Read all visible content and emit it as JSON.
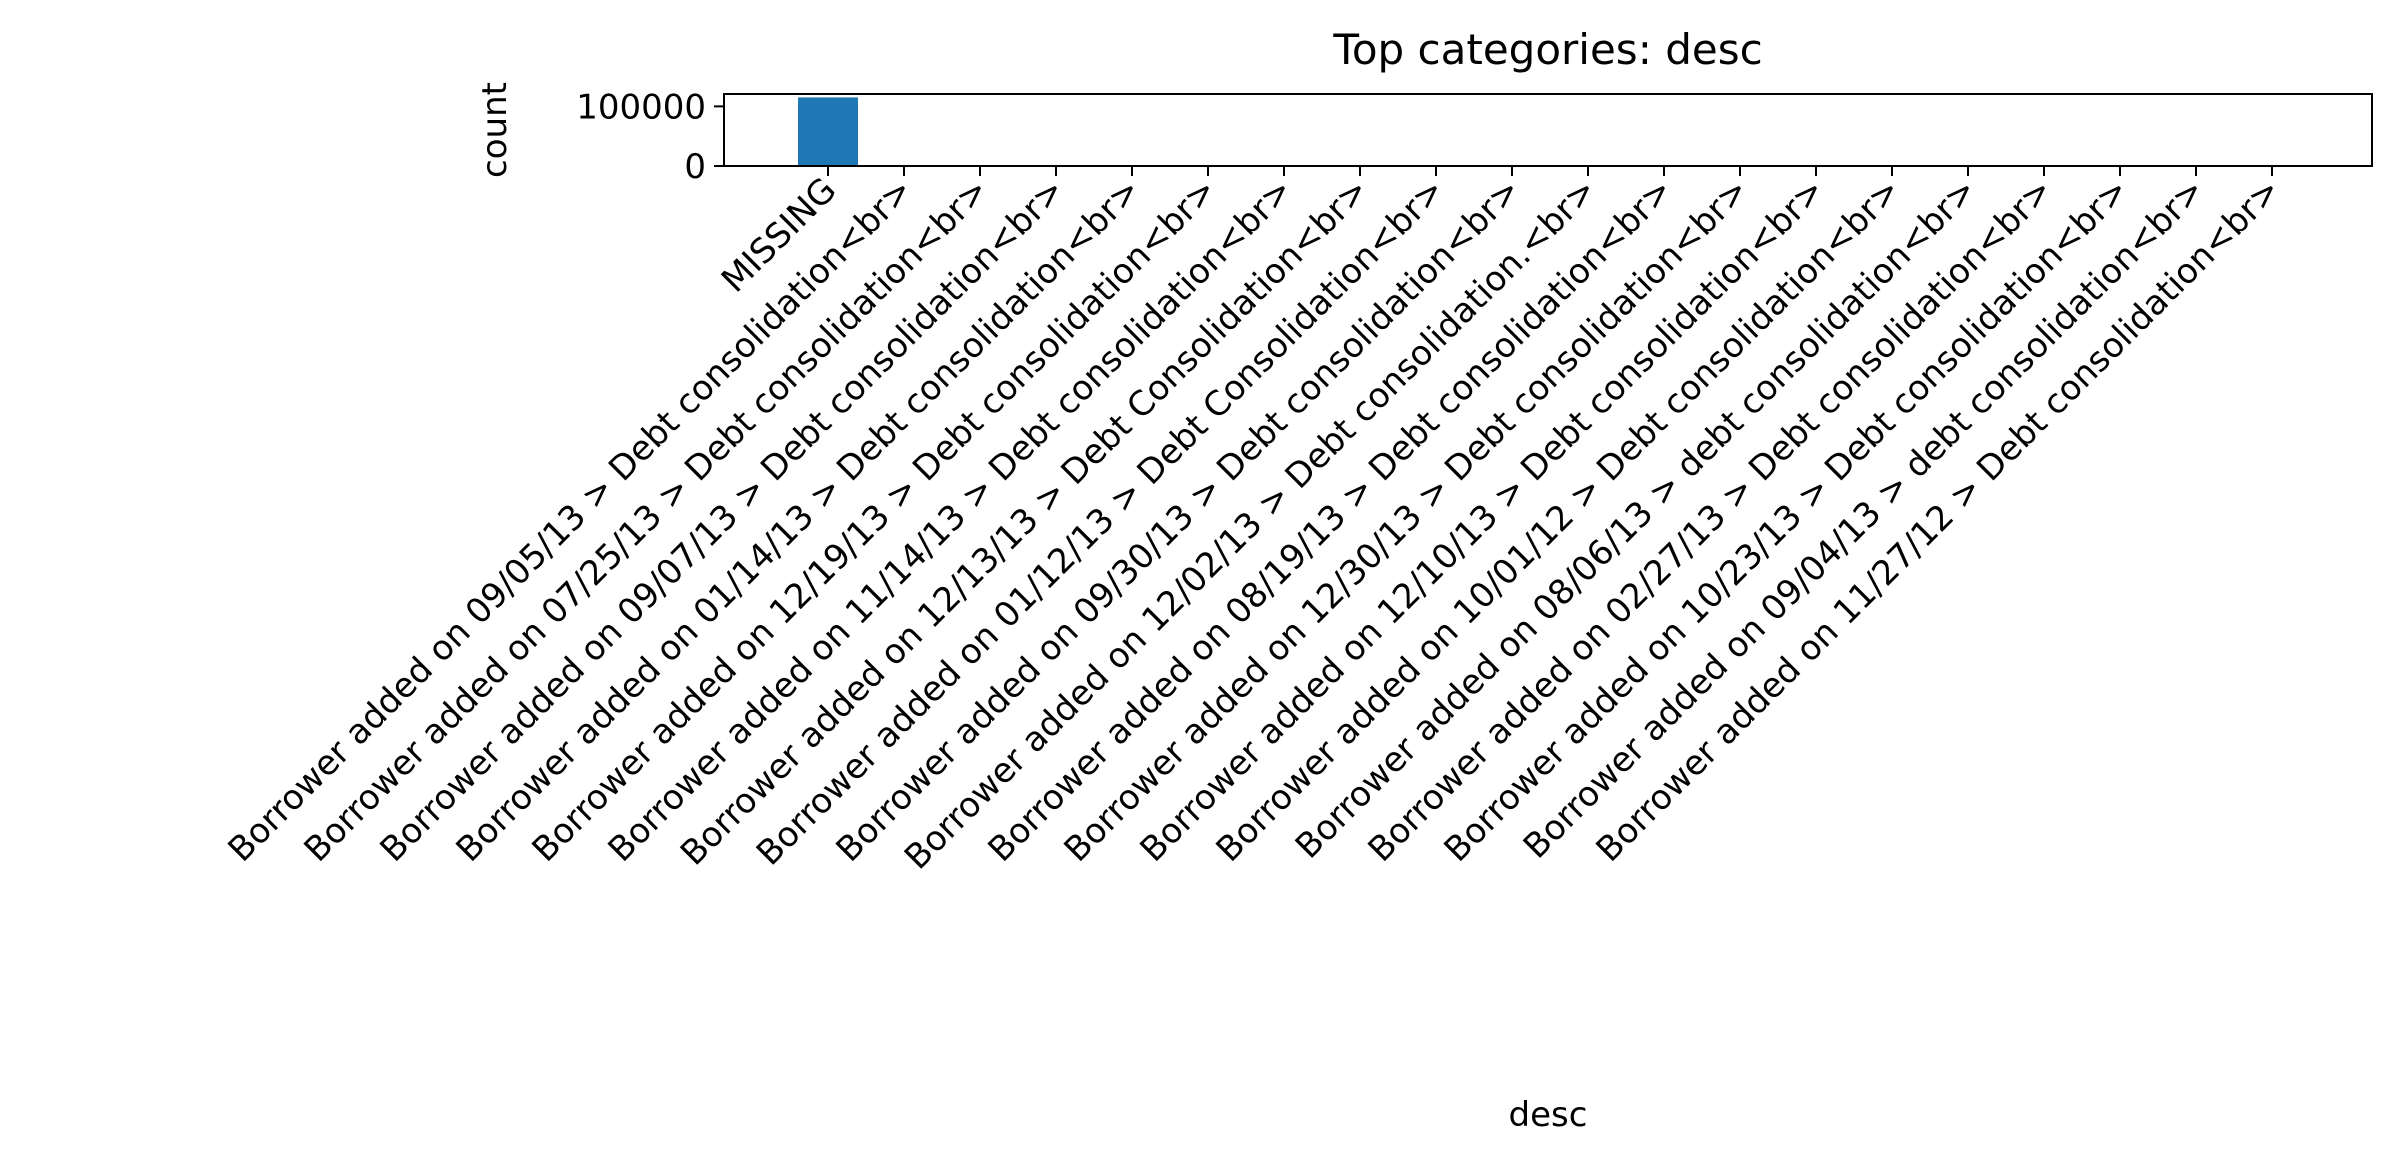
{
  "chart_data": {
    "type": "bar",
    "title": "Top categories: desc",
    "xlabel": "desc",
    "ylabel": "count",
    "categories": [
      "MISSING",
      "Borrower added on 09/05/13 > Debt consolidation<br>",
      "Borrower added on 07/25/13 > Debt consolidation<br>",
      "Borrower added on 09/07/13 > Debt consolidation<br>",
      "Borrower added on 01/14/13 > Debt consolidation<br>",
      "Borrower added on 12/19/13 > Debt consolidation<br>",
      "Borrower added on 11/14/13 > Debt consolidation<br>",
      "Borrower added on 12/13/13 > Debt Consolidation<br>",
      "Borrower added on 01/12/13 > Debt Consolidation<br>",
      "Borrower added on 09/30/13 > Debt consolidation<br>",
      "Borrower added on 12/02/13 > Debt consolidation.<br>",
      "Borrower added on 08/19/13 > Debt consolidation<br>",
      "Borrower added on 12/30/13 > Debt consolidation<br>",
      "Borrower added on 12/10/13 > Debt consolidation<br>",
      "Borrower added on 10/01/12 > Debt consolidation<br>",
      "Borrower added on 08/06/13 > debt consolidation<br>",
      "Borrower added on 02/27/13 > Debt consolidation<br>",
      "Borrower added on 10/23/13 > Debt consolidation<br>",
      "Borrower added on 09/04/13 > debt consolidation<br>",
      "Borrower added on 11/27/12 > Debt consolidation<br>"
    ],
    "values": [
      115000,
      30,
      20,
      20,
      20,
      20,
      18,
      18,
      18,
      17,
      17,
      17,
      16,
      16,
      16,
      15,
      15,
      15,
      15,
      15
    ],
    "ylim": [
      0,
      120750
    ],
    "yticks": [
      0,
      100000
    ],
    "grid": false,
    "legend": "none",
    "bar_color": "#1f77b4"
  }
}
